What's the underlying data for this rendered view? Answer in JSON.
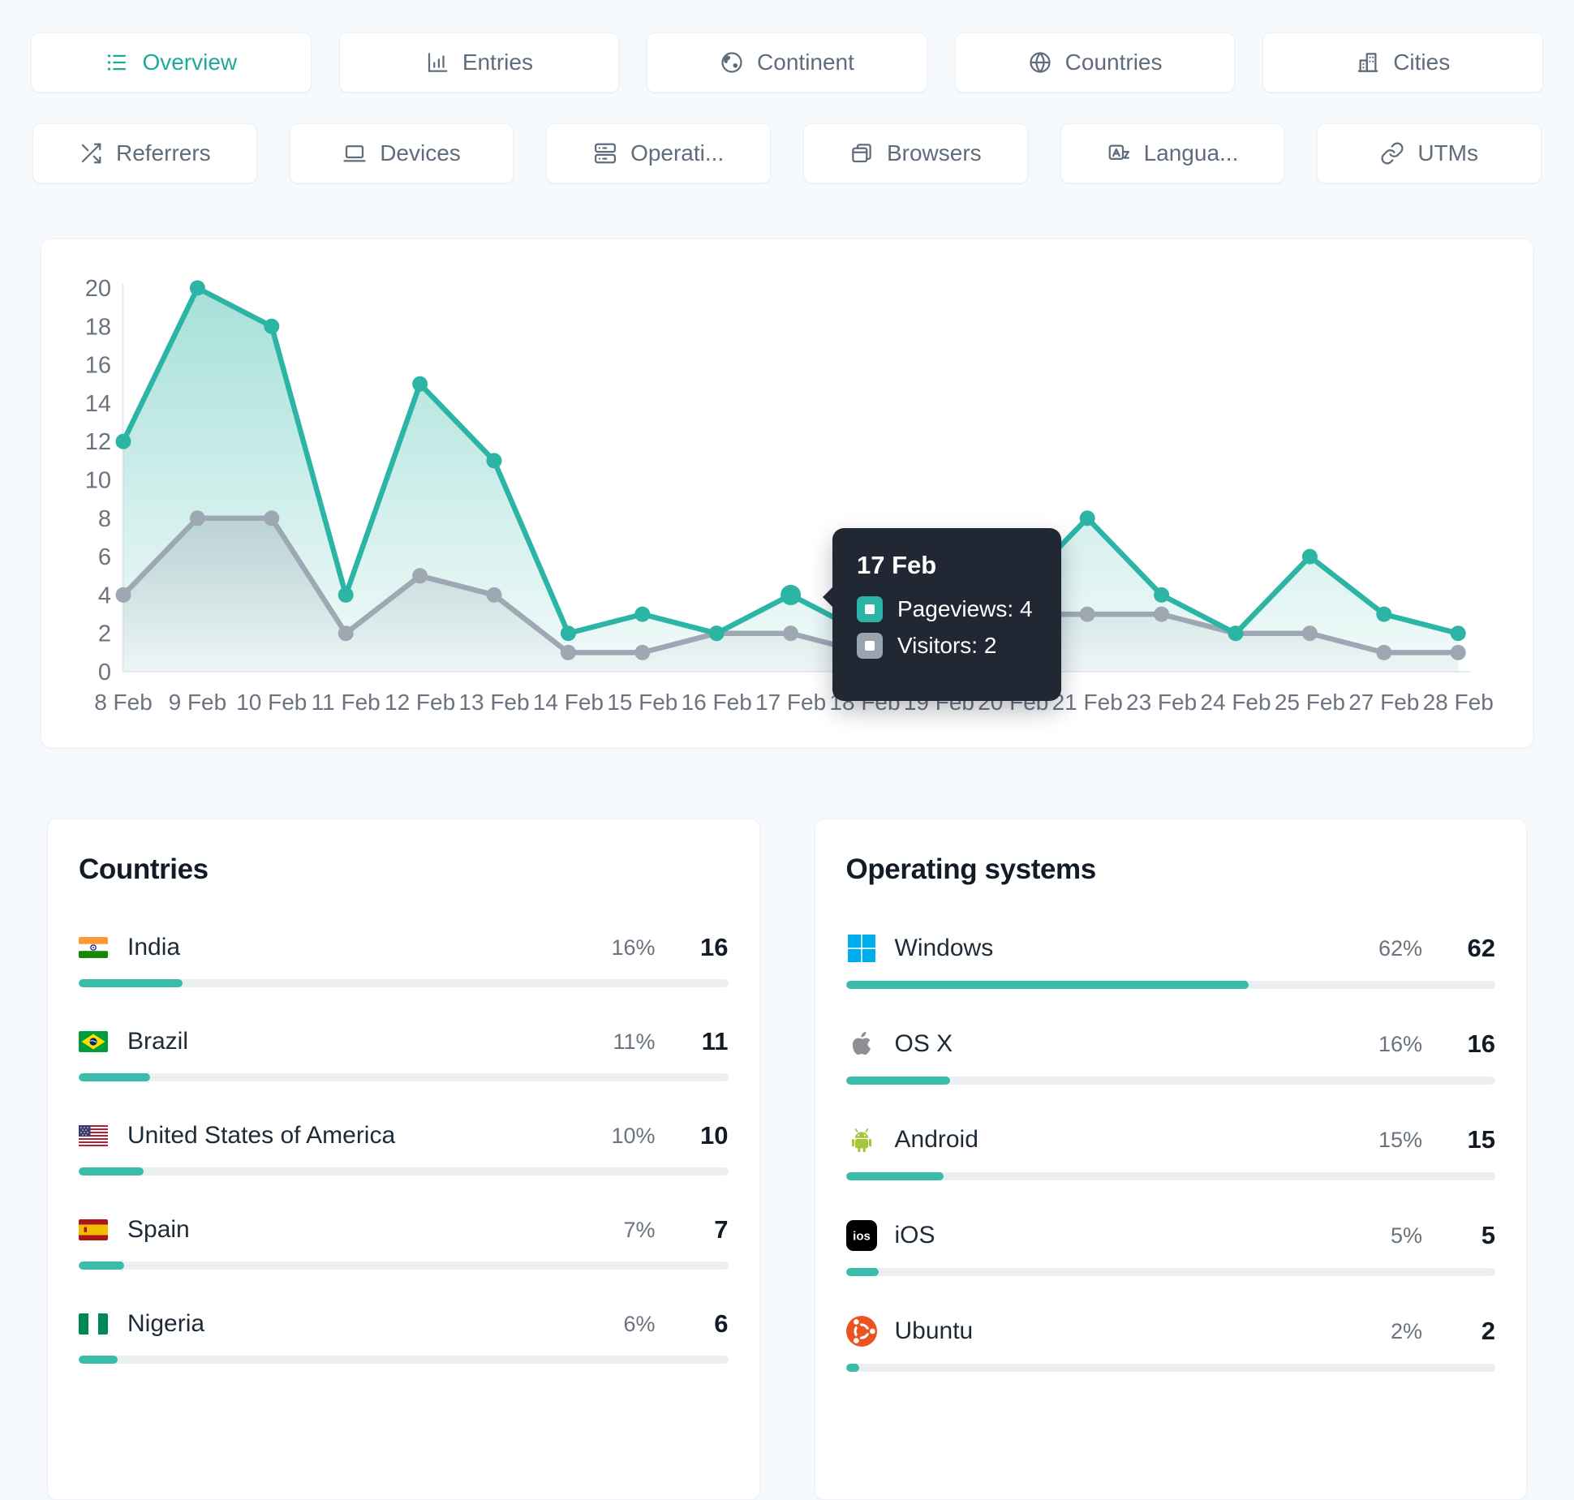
{
  "colors": {
    "accent": "#1FA99C",
    "pageviews_line": "#2CB5A5",
    "visitors_line": "#9DA8B3",
    "bar_fill": "#3ABCAB",
    "tooltip_bg": "#212733",
    "axis_text": "#6B7280"
  },
  "tabs_row1": [
    {
      "key": "overview",
      "label": "Overview",
      "icon": "list-icon",
      "active": true
    },
    {
      "key": "entries",
      "label": "Entries",
      "icon": "bar-chart-icon",
      "active": false
    },
    {
      "key": "continent",
      "label": "Continent",
      "icon": "earth-icon",
      "active": false
    },
    {
      "key": "countries",
      "label": "Countries",
      "icon": "globe-icon",
      "active": false
    },
    {
      "key": "cities",
      "label": "Cities",
      "icon": "buildings-icon",
      "active": false
    }
  ],
  "tabs_row2": [
    {
      "key": "referrers",
      "label": "Referrers",
      "icon": "shuffle-icon",
      "active": false
    },
    {
      "key": "devices",
      "label": "Devices",
      "icon": "laptop-icon",
      "active": false
    },
    {
      "key": "operating-systems",
      "label": "Operati...",
      "icon": "server-icon",
      "active": false
    },
    {
      "key": "browsers",
      "label": "Browsers",
      "icon": "browser-icon",
      "active": false
    },
    {
      "key": "languages",
      "label": "Langua...",
      "icon": "language-icon",
      "active": false
    },
    {
      "key": "utms",
      "label": "UTMs",
      "icon": "link-icon",
      "active": false
    }
  ],
  "chart_data": {
    "type": "line",
    "x": [
      "8 Feb",
      "9 Feb",
      "10 Feb",
      "11 Feb",
      "12 Feb",
      "13 Feb",
      "14 Feb",
      "15 Feb",
      "16 Feb",
      "17 Feb",
      "18 Feb",
      "19 Feb",
      "20 Feb",
      "21 Feb",
      "23 Feb",
      "24 Feb",
      "25 Feb",
      "27 Feb",
      "28 Feb"
    ],
    "series": [
      {
        "name": "Pageviews",
        "values": [
          12,
          20,
          18,
          4,
          15,
          11,
          2,
          3,
          2,
          4,
          2,
          2,
          4,
          8,
          4,
          2,
          6,
          3,
          2
        ]
      },
      {
        "name": "Visitors",
        "values": [
          4,
          8,
          8,
          2,
          5,
          4,
          1,
          1,
          2,
          2,
          1,
          2,
          3,
          3,
          3,
          2,
          2,
          1,
          1
        ]
      }
    ],
    "ylim": [
      0,
      20
    ],
    "yticks": [
      0,
      2,
      4,
      6,
      8,
      10,
      12,
      14,
      16,
      18,
      20
    ],
    "grid": false,
    "legend": "tooltip-only"
  },
  "tooltip": {
    "title": "17 Feb",
    "rows": [
      {
        "text": "Pageviews: 4",
        "series": "Pageviews"
      },
      {
        "text": "Visitors: 2",
        "series": "Visitors"
      }
    ]
  },
  "panels": {
    "countries": {
      "title": "Countries",
      "rows": [
        {
          "name": "India",
          "flag": "india",
          "percent": "16%",
          "count": "16"
        },
        {
          "name": "Brazil",
          "flag": "brazil",
          "percent": "11%",
          "count": "11"
        },
        {
          "name": "United States of America",
          "flag": "usa",
          "percent": "10%",
          "count": "10"
        },
        {
          "name": "Spain",
          "flag": "spain",
          "percent": "7%",
          "count": "7"
        },
        {
          "name": "Nigeria",
          "flag": "nigeria",
          "percent": "6%",
          "count": "6"
        }
      ]
    },
    "os": {
      "title": "Operating systems",
      "rows": [
        {
          "name": "Windows",
          "logo": "windows",
          "percent": "62%",
          "count": "62"
        },
        {
          "name": "OS X",
          "logo": "apple",
          "percent": "16%",
          "count": "16"
        },
        {
          "name": "Android",
          "logo": "android",
          "percent": "15%",
          "count": "15"
        },
        {
          "name": "iOS",
          "logo": "ios",
          "percent": "5%",
          "count": "5"
        },
        {
          "name": "Ubuntu",
          "logo": "ubuntu",
          "percent": "2%",
          "count": "2"
        }
      ]
    }
  }
}
